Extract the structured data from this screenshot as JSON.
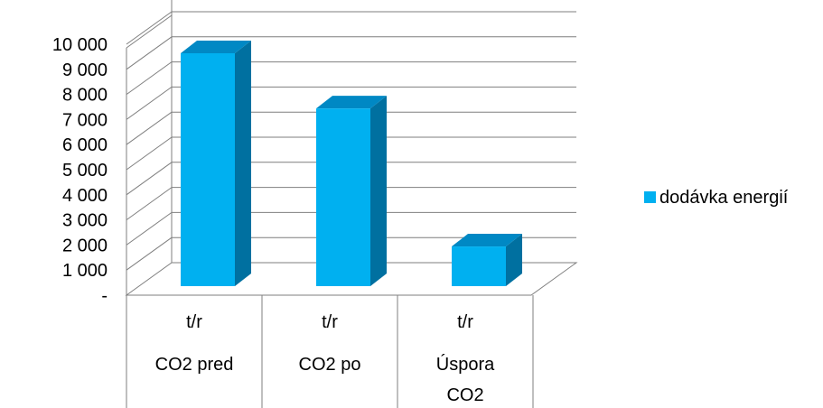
{
  "chart_data": {
    "type": "bar",
    "style": "3d-column",
    "categories": [
      {
        "line1": "t/r",
        "line2": "CO2 pred",
        "line3": ""
      },
      {
        "line1": "t/r",
        "line2": "CO2  po",
        "line3": ""
      },
      {
        "line1": "t/r",
        "line2": "Úspora",
        "line3": "CO2"
      }
    ],
    "series": [
      {
        "name": "dodávka energií",
        "values": [
          10000,
          7800,
          2300
        ],
        "color": "#00B0F0",
        "side_color": "#0070A0",
        "top_color": "#0088C4"
      }
    ],
    "yticks": [
      {
        "value": 0,
        "label": "-"
      },
      {
        "value": 1000,
        "label": "1 000"
      },
      {
        "value": 2000,
        "label": "2 000"
      },
      {
        "value": 3000,
        "label": "3 000"
      },
      {
        "value": 4000,
        "label": "4 000"
      },
      {
        "value": 5000,
        "label": "5 000"
      },
      {
        "value": 6000,
        "label": "6 000"
      },
      {
        "value": 7000,
        "label": "7 000"
      },
      {
        "value": 8000,
        "label": "8 000"
      },
      {
        "value": 9000,
        "label": "9 000"
      },
      {
        "value": 10000,
        "label": "10 000"
      }
    ],
    "ylim": [
      0,
      10000
    ],
    "grid": true,
    "legend_position": "right",
    "title": "",
    "xlabel": "",
    "ylabel": ""
  }
}
